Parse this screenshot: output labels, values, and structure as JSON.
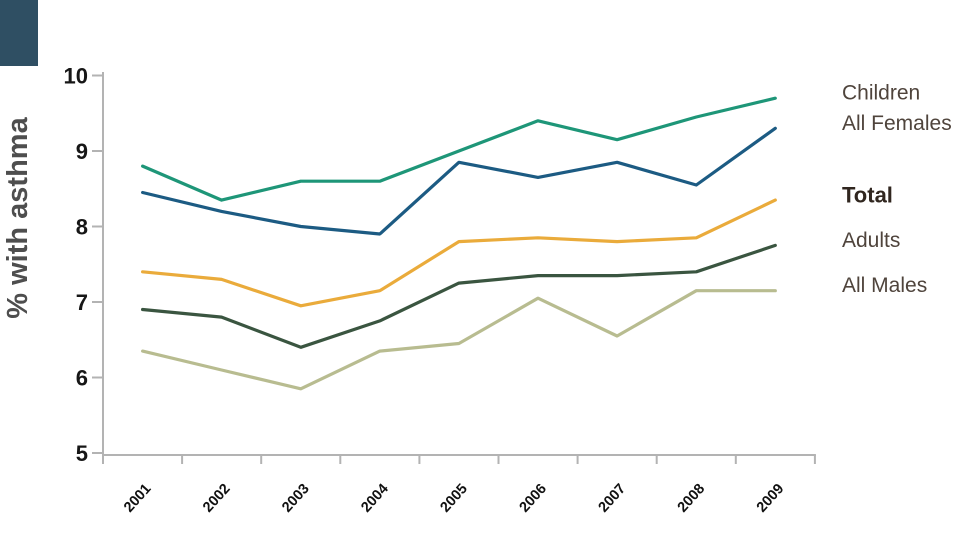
{
  "page": {
    "background_color": "#ffffff",
    "corner_accent_color": "#2F4F63"
  },
  "chart_data": {
    "type": "line",
    "title": "",
    "xlabel": "",
    "ylabel": "% with asthma",
    "x": [
      "2001",
      "2002",
      "2003",
      "2004",
      "2005",
      "2006",
      "2007",
      "2008",
      "2009"
    ],
    "ylim": [
      5,
      10
    ],
    "yticks": [
      10,
      9,
      8,
      7,
      6,
      5
    ],
    "grid": false,
    "legend_position": "right-of-line-ends",
    "series": [
      {
        "name": "Children",
        "color": "#1E9678",
        "bold_label": false,
        "values": [
          8.8,
          8.35,
          8.6,
          8.6,
          9.0,
          9.4,
          9.15,
          9.45,
          9.7
        ]
      },
      {
        "name": "All Females",
        "color": "#1C5B83",
        "bold_label": false,
        "values": [
          8.45,
          8.2,
          8.0,
          7.9,
          8.85,
          8.65,
          8.85,
          8.55,
          9.3
        ]
      },
      {
        "name": "Total",
        "color": "#EAAB3B",
        "bold_label": true,
        "values": [
          7.4,
          7.3,
          6.95,
          7.15,
          7.8,
          7.85,
          7.8,
          7.85,
          8.35
        ]
      },
      {
        "name": "Adults",
        "color": "#3A5540",
        "bold_label": false,
        "values": [
          6.9,
          6.8,
          6.4,
          6.75,
          7.25,
          7.35,
          7.35,
          7.4,
          7.75
        ]
      },
      {
        "name": "All Males",
        "color": "#B8BC90",
        "bold_label": false,
        "values": [
          6.35,
          6.1,
          5.85,
          6.35,
          6.45,
          7.05,
          6.55,
          7.15,
          7.15
        ]
      }
    ],
    "style": {
      "axis_color": "#B3B3B3",
      "tick_label_color": "#161616",
      "x_label_color": "#111111",
      "ylabel_color": "#4E4E4E",
      "legend_text_color": "#4F443C",
      "legend_bold_color": "#30261F"
    }
  }
}
